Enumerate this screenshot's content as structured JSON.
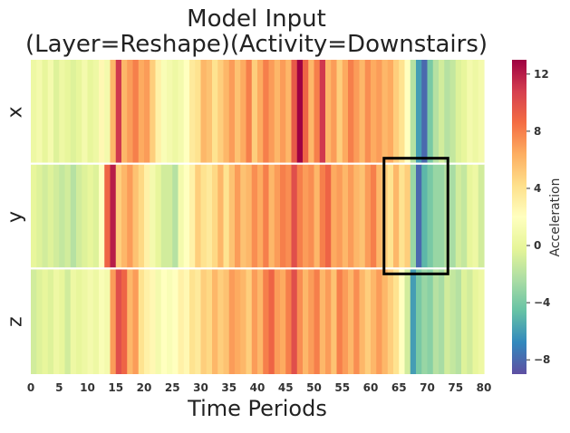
{
  "chart_data": {
    "type": "heatmap",
    "title": [
      "Model Input",
      "(Layer=Reshape)(Activity=Downstairs)"
    ],
    "xlabel": "Time Periods",
    "colorbar_label": "Acceleration",
    "rows": [
      "x",
      "y",
      "z"
    ],
    "x_ticks": [
      0,
      5,
      10,
      15,
      20,
      25,
      30,
      35,
      40,
      45,
      50,
      55,
      60,
      65,
      70,
      75,
      80
    ],
    "colorbar_ticks": [
      12,
      8,
      4,
      0,
      -4,
      -8
    ],
    "vmin": -9,
    "vmax": 13,
    "values": [
      [
        0.5,
        1,
        0,
        1,
        -0.5,
        0.5,
        0,
        -0.5,
        0,
        1,
        0,
        0.5,
        2.5,
        1,
        6,
        11,
        6,
        7,
        8,
        6.5,
        7,
        5,
        3,
        1.5,
        1,
        0.5,
        1,
        2,
        3.5,
        4,
        6,
        5.5,
        4,
        5,
        6,
        7,
        5.5,
        6.5,
        8,
        5,
        6.5,
        8,
        7,
        6,
        7,
        6,
        9.5,
        13,
        9,
        6,
        8,
        11,
        6,
        7,
        5,
        6.5,
        8,
        7,
        6,
        7.5,
        6.5,
        7,
        6,
        6.5,
        5,
        4,
        2,
        -2,
        -6,
        -8,
        -4,
        -2,
        -1,
        -2,
        -1.5,
        -0.5,
        0,
        1,
        0.5,
        1
      ],
      [
        0,
        -0.5,
        -1,
        -0.5,
        -1,
        -1.5,
        -1,
        -2,
        -1,
        -0.5,
        0,
        -0.5,
        2,
        9,
        12,
        5,
        6,
        7,
        5.5,
        4.5,
        3,
        1,
        0,
        -1,
        -1,
        -2,
        1,
        2,
        3,
        5,
        4,
        3.5,
        4.5,
        6,
        4,
        5.5,
        7,
        5.5,
        6,
        7.5,
        6.5,
        8,
        6,
        7,
        8,
        7.5,
        10,
        8,
        7,
        7.5,
        6,
        8,
        9,
        6.5,
        7,
        6,
        7,
        6,
        5.5,
        7,
        8,
        6,
        5,
        4,
        6,
        4,
        5,
        -3,
        -8,
        -5,
        -4,
        -3,
        -3,
        -2,
        -2.5,
        -1,
        -1.5,
        0,
        0.5,
        -1
      ],
      [
        -1,
        -0.5,
        0,
        -0.5,
        0.5,
        0,
        -1,
        0.5,
        0,
        0.5,
        1,
        0.5,
        1.5,
        1,
        7,
        10,
        9,
        6,
        7,
        4,
        3,
        2.5,
        1,
        2,
        1.5,
        2,
        3,
        2.5,
        4,
        3.5,
        5,
        4.5,
        6,
        5,
        5.5,
        7,
        6.5,
        6,
        5,
        7,
        6,
        8,
        9,
        7,
        6.5,
        8,
        10,
        7.5,
        6,
        7,
        8,
        6,
        7,
        5.5,
        8,
        7,
        6,
        7.5,
        6,
        5,
        6,
        7,
        6,
        5,
        4,
        2,
        -1,
        -6,
        -4,
        -3,
        -3.5,
        -2,
        -2.5,
        -1,
        -1.5,
        -2,
        -0.5,
        -1,
        0,
        0.5
      ]
    ],
    "annotations": [
      {
        "type": "rectangle",
        "x_range": [
          63,
          73
        ],
        "rows": [
          "y"
        ]
      }
    ],
    "colormap": "Spectral_r"
  }
}
